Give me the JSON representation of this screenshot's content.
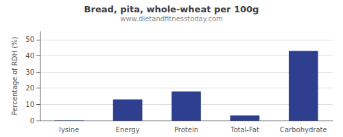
{
  "chart_data": {
    "type": "bar",
    "title": "Bread, pita, whole-wheat per 100g",
    "subtitle": "www.dietandfitnesstoday.com",
    "categories": [
      "lysine",
      "Energy",
      "Protein",
      "Total-Fat",
      "Carbohydrate"
    ],
    "values": [
      0.2,
      13,
      18,
      3.2,
      43
    ],
    "color": "#2e3f8f",
    "ylabel": "Percentage of RDH (%)",
    "ylim": [
      0,
      55
    ],
    "yticks": [
      0,
      10,
      20,
      30,
      40,
      50
    ],
    "grid": true
  }
}
